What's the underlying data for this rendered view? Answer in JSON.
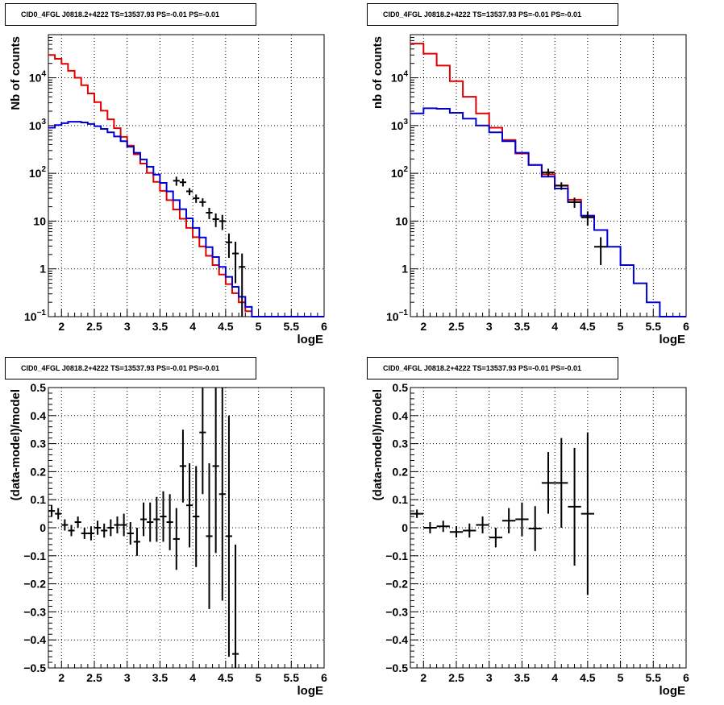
{
  "colors": {
    "data": "#000000",
    "total_model": "#e00000",
    "component_model": "#0000d0",
    "grid": "#000000"
  },
  "chart_data": [
    {
      "type": "line",
      "title": "CID0_4FGL J0818.2+4222 TS=13537.93 PS=-0.01 PS=-0.01",
      "xlabel": "logE",
      "ylabel": "Nb of counts",
      "xlim": [
        1.8,
        6.0
      ],
      "ylim": [
        0.1,
        80000
      ],
      "yscale": "log",
      "grid": true,
      "xticks": [
        "2",
        "2.5",
        "3",
        "3.5",
        "4",
        "4.5",
        "5",
        "5.5",
        "6"
      ],
      "yticks": [
        "10^-1",
        "1",
        "10",
        "10^2",
        "10^3",
        "10^4"
      ],
      "bin_edges": [
        1.8,
        1.9,
        2.0,
        2.1,
        2.2,
        2.3,
        2.4,
        2.5,
        2.6,
        2.7,
        2.8,
        2.9,
        3.0,
        3.1,
        3.2,
        3.3,
        3.4,
        3.5,
        3.6,
        3.7,
        3.8,
        3.9,
        4.0,
        4.1,
        4.2,
        4.3,
        4.4,
        4.5,
        4.6,
        4.7,
        4.8,
        4.9,
        5.0,
        5.1,
        5.2,
        5.3,
        5.4,
        5.5,
        5.6,
        5.7,
        5.8,
        5.9,
        6.0
      ],
      "series": [
        {
          "role": "total_model",
          "values": [
            30000,
            25000,
            19500,
            14000,
            10000,
            7000,
            4700,
            3100,
            2050,
            1350,
            880,
            580,
            380,
            250,
            160,
            102,
            66,
            43,
            27.5,
            17.5,
            11.2,
            7.2,
            4.6,
            2.95,
            1.88,
            1.2,
            0.76,
            0.48,
            0.31,
            0.2,
            0.13,
            null,
            null,
            null,
            null,
            null,
            null,
            null,
            null,
            null,
            null,
            null
          ]
        },
        {
          "role": "component_model",
          "values": [
            900,
            1020,
            1120,
            1200,
            1200,
            1160,
            1080,
            970,
            850,
            720,
            590,
            470,
            360,
            270,
            195,
            137,
            94,
            63,
            42,
            27.5,
            17.8,
            11.4,
            7.2,
            4.55,
            2.85,
            1.77,
            1.1,
            0.68,
            0.42,
            0.26,
            0.16,
            0.1,
            0.1,
            0.1,
            0.1,
            0.1,
            0.1,
            0.1,
            0.1,
            0.1,
            0.1,
            0.1
          ]
        },
        {
          "role": "data",
          "points": [
            [
              3.75,
              70,
              15
            ],
            [
              3.85,
              65,
              12
            ],
            [
              3.95,
              42,
              7
            ],
            [
              4.05,
              30,
              6
            ],
            [
              4.15,
              25,
              5
            ],
            [
              4.25,
              15,
              4
            ],
            [
              4.35,
              11,
              3.5
            ],
            [
              4.45,
              10,
              3.5
            ],
            [
              4.55,
              3.6,
              1.9
            ],
            [
              4.65,
              2.1,
              1.6
            ],
            [
              4.75,
              1.1,
              1.0
            ]
          ]
        }
      ]
    },
    {
      "type": "line",
      "title": "CID0_4FGL J0818.2+4222 TS=13537.93 PS=-0.01 PS=-0.01",
      "xlabel": "logE",
      "ylabel": "nb of counts",
      "xlim": [
        1.8,
        6.0
      ],
      "ylim": [
        0.1,
        80000
      ],
      "yscale": "log",
      "grid": true,
      "xticks": [
        "2",
        "2.5",
        "3",
        "3.5",
        "4",
        "4.5",
        "5",
        "5.5",
        "6"
      ],
      "yticks": [
        "10^-1",
        "1",
        "10",
        "10^2",
        "10^3",
        "10^4"
      ],
      "bin_edges": [
        1.8,
        2.0,
        2.2,
        2.4,
        2.6,
        2.8,
        3.0,
        3.2,
        3.4,
        3.6,
        3.8,
        4.0,
        4.2,
        4.4,
        4.6,
        4.8,
        5.0,
        5.2,
        5.4,
        5.6,
        5.8,
        6.0
      ],
      "series": [
        {
          "role": "total_model",
          "values": [
            52000,
            32000,
            18000,
            8500,
            4000,
            1800,
            900,
            500,
            260,
            150,
            95,
            56,
            28,
            13,
            null,
            null,
            null,
            null,
            null,
            null,
            null
          ]
        },
        {
          "role": "component_model",
          "values": [
            1800,
            2300,
            2250,
            1850,
            1400,
            1000,
            720,
            470,
            270,
            150,
            85,
            48,
            25,
            13,
            6.5,
            2.9,
            1.2,
            0.5,
            0.2,
            0.1,
            0.1
          ]
        },
        {
          "role": "data",
          "points": [
            [
              3.9,
              105,
              20
            ],
            [
              4.1,
              55,
              10
            ],
            [
              4.3,
              25,
              6
            ],
            [
              4.5,
              12,
              4
            ],
            [
              4.7,
              2.9,
              1.7
            ]
          ]
        }
      ]
    },
    {
      "type": "scatter",
      "title": "CID0_4FGL J0818.2+4222 TS=13537.93 PS=-0.01 PS=-0.01",
      "xlabel": "logE",
      "ylabel": "(data-model)/model",
      "xlim": [
        1.8,
        6.0
      ],
      "ylim": [
        -0.5,
        0.5
      ],
      "grid": true,
      "xticks": [
        "2",
        "2.5",
        "3",
        "3.5",
        "4",
        "4.5",
        "5",
        "5.5",
        "6"
      ],
      "yticks": [
        "-0.5",
        "-0.4",
        "-0.3",
        "-0.2",
        "-0.1",
        "0",
        "0.1",
        "0.2",
        "0.3",
        "0.4",
        "0.5"
      ],
      "bin_width": 0.1,
      "series": [
        {
          "role": "data",
          "points": [
            [
              1.85,
              0.06,
              0.02
            ],
            [
              1.95,
              0.05,
              0.02
            ],
            [
              2.05,
              0.01,
              0.02
            ],
            [
              2.15,
              -0.01,
              0.02
            ],
            [
              2.25,
              0.02,
              0.02
            ],
            [
              2.35,
              -0.02,
              0.02
            ],
            [
              2.45,
              -0.02,
              0.025
            ],
            [
              2.55,
              0.0,
              0.025
            ],
            [
              2.65,
              -0.01,
              0.025
            ],
            [
              2.75,
              0.0,
              0.03
            ],
            [
              2.85,
              0.01,
              0.03
            ],
            [
              2.95,
              0.01,
              0.04
            ],
            [
              3.05,
              -0.02,
              0.04
            ],
            [
              3.15,
              -0.05,
              0.05
            ],
            [
              3.25,
              0.03,
              0.06
            ],
            [
              3.35,
              0.02,
              0.07
            ],
            [
              3.45,
              0.03,
              0.08
            ],
            [
              3.55,
              0.04,
              0.09
            ],
            [
              3.65,
              0.02,
              0.1
            ],
            [
              3.75,
              -0.04,
              0.11
            ],
            [
              3.85,
              0.22,
              0.13
            ],
            [
              3.95,
              0.08,
              0.15
            ],
            [
              4.05,
              0.04,
              0.18
            ],
            [
              4.15,
              0.34,
              0.22
            ],
            [
              4.25,
              -0.03,
              0.26
            ],
            [
              4.35,
              0.22,
              0.31
            ],
            [
              4.45,
              0.12,
              0.38
            ],
            [
              4.55,
              -0.03,
              0.43
            ],
            [
              4.65,
              -0.45,
              0.39
            ]
          ]
        }
      ]
    },
    {
      "type": "scatter",
      "title": "CID0_4FGL J0818.2+4222 TS=13537.93 PS=-0.01 PS=-0.01",
      "xlabel": "logE",
      "ylabel": "(data-model)/model",
      "xlim": [
        1.8,
        6.0
      ],
      "ylim": [
        -0.5,
        0.5
      ],
      "grid": true,
      "xticks": [
        "2",
        "2.5",
        "3",
        "3.5",
        "4",
        "4.5",
        "5",
        "5.5",
        "6"
      ],
      "yticks": [
        "-0.5",
        "-0.4",
        "-0.3",
        "-0.2",
        "-0.1",
        "0",
        "0.1",
        "0.2",
        "0.3",
        "0.4",
        "0.5"
      ],
      "bin_width": 0.2,
      "series": [
        {
          "role": "data",
          "points": [
            [
              1.9,
              0.05,
              0.015
            ],
            [
              2.1,
              0.0,
              0.02
            ],
            [
              2.3,
              0.005,
              0.02
            ],
            [
              2.5,
              -0.015,
              0.02
            ],
            [
              2.7,
              -0.01,
              0.025
            ],
            [
              2.9,
              0.01,
              0.03
            ],
            [
              3.1,
              -0.035,
              0.035
            ],
            [
              3.3,
              0.025,
              0.045
            ],
            [
              3.5,
              0.03,
              0.06
            ],
            [
              3.7,
              -0.003,
              0.08
            ],
            [
              3.9,
              0.16,
              0.11
            ],
            [
              4.1,
              0.16,
              0.16
            ],
            [
              4.3,
              0.075,
              0.21
            ],
            [
              4.5,
              0.05,
              0.29
            ]
          ]
        }
      ]
    }
  ]
}
